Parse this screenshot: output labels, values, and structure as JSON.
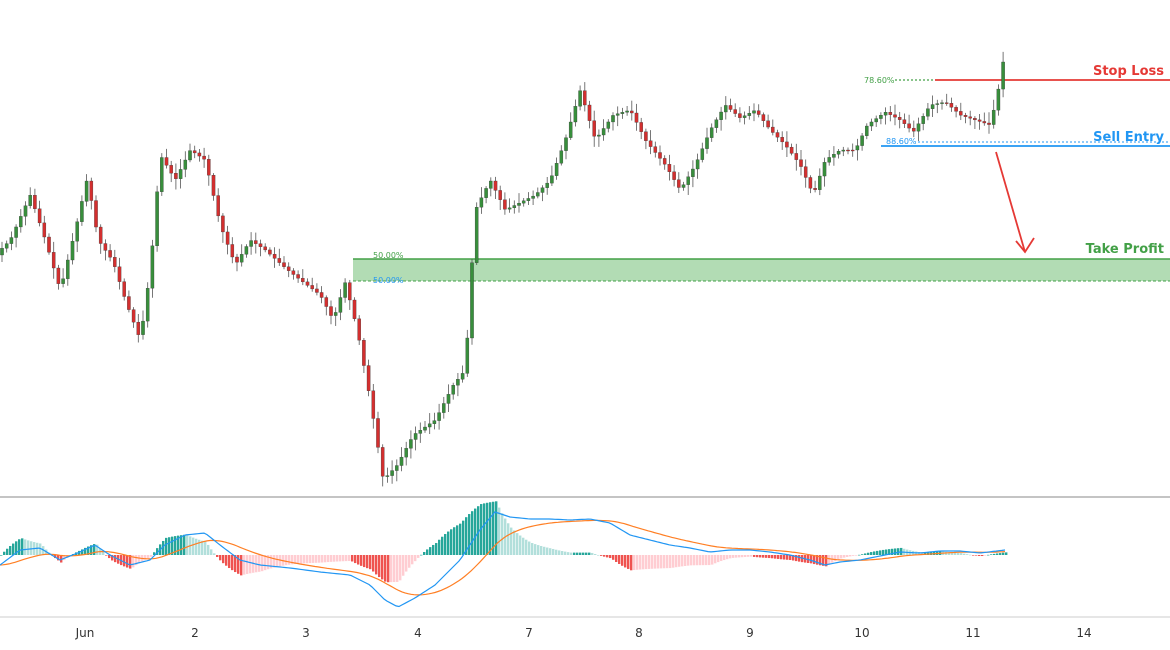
{
  "chart_data": {
    "type": "candlestick",
    "levels": {
      "stop_loss": {
        "label": "Stop Loss",
        "fib": "78.60%",
        "color": "#e53935"
      },
      "sell_entry": {
        "label": "Sell Entry",
        "fib": "88.60%",
        "color": "#2196f3"
      },
      "take_profit": {
        "label": "Take Profit",
        "fib_top": "50.00%",
        "fib_bottom": "50.00%",
        "color": "#43a047",
        "zone_fill": "#a5d6a7"
      }
    },
    "x_ticks": [
      "Jun",
      "2",
      "3",
      "4",
      "7",
      "8",
      "9",
      "10",
      "11",
      "14"
    ],
    "colors": {
      "up": "#388e3c",
      "down": "#d32f2f",
      "macd": "#2196f3",
      "signal": "#ff7f24",
      "hist_up_strong": "#26a69a",
      "hist_up_weak": "#b2dfdb",
      "hist_down_strong": "#ef5350",
      "hist_down_weak": "#ffcdd2"
    },
    "indicator": "MACD"
  }
}
